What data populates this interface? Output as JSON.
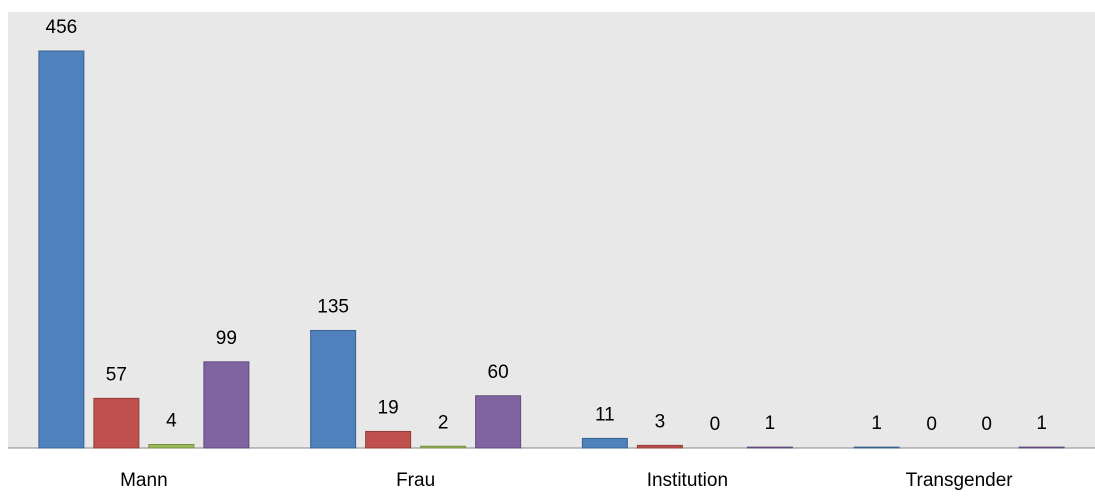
{
  "chart_data": {
    "type": "bar",
    "categories": [
      "Mann",
      "Frau",
      "Institution",
      "Transgender"
    ],
    "series": [
      {
        "color": "#4f81bd",
        "values": [
          456,
          135,
          11,
          1
        ]
      },
      {
        "color": "#c0504d",
        "values": [
          57,
          19,
          3,
          0
        ]
      },
      {
        "color": "#9bbb59",
        "values": [
          4,
          2,
          0,
          0
        ]
      },
      {
        "color": "#8064a2",
        "values": [
          99,
          60,
          1,
          1
        ]
      }
    ]
  }
}
